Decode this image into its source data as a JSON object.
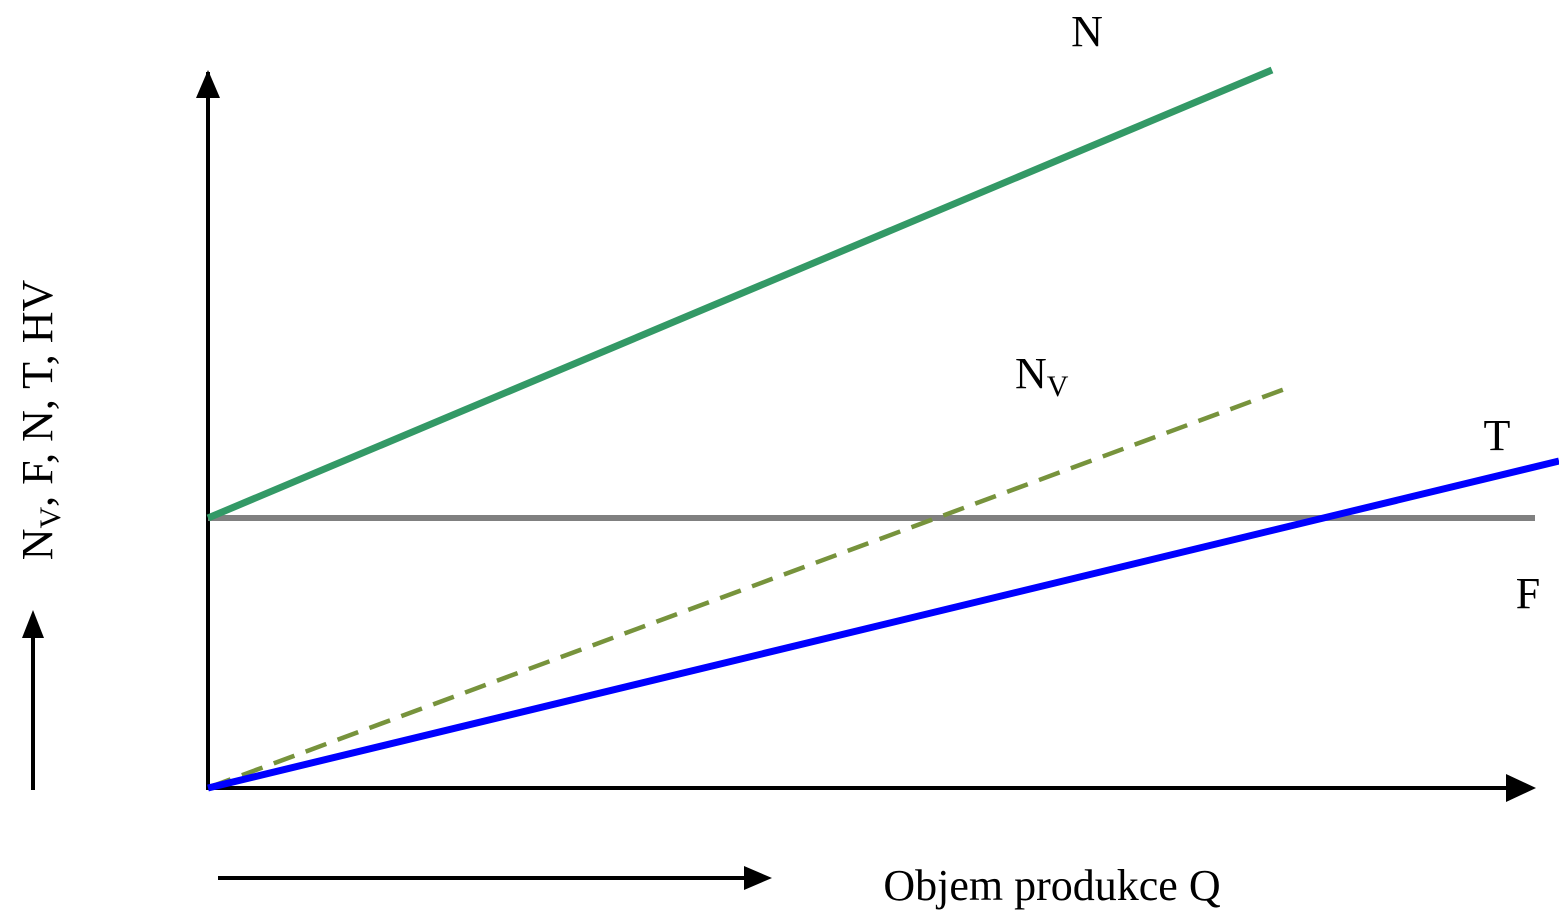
{
  "diagram": {
    "y_axis_label": {
      "main": "N",
      "sub": "V",
      "rest": ", F, N, T, HV"
    },
    "x_axis_label": "Objem produkce Q",
    "lines": [
      {
        "label": "N"
      },
      {
        "label": {
          "main": "N",
          "sub": "V"
        }
      },
      {
        "label": "T"
      },
      {
        "label": "F"
      }
    ]
  }
}
